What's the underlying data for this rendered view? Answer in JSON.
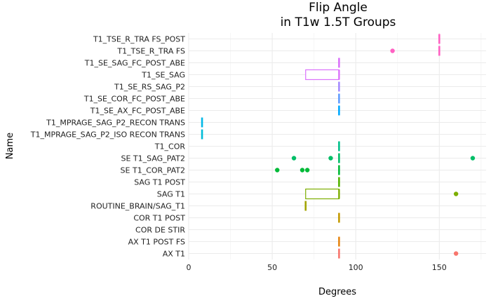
{
  "chart_data": {
    "type": "boxplot",
    "title": [
      "Flip Angle",
      "in T1w 1.5T Groups"
    ],
    "xlabel": "Degrees",
    "ylabel": "Name",
    "xlim": [
      0,
      178
    ],
    "xticks": [
      0,
      50,
      100,
      150
    ],
    "grid": true,
    "legend": "none",
    "groups": [
      {
        "name": "T1_TSE_R_TRA FS_POST",
        "color": "#FF61C3",
        "box": [
          150,
          150,
          150
        ],
        "outliers": []
      },
      {
        "name": "T1_TSE_R_TRA FS",
        "color": "#FF61C3",
        "box": [
          150,
          150,
          150
        ],
        "outliers": [
          122
        ]
      },
      {
        "name": "T1_SE_SAG_FC_POST_ABE",
        "color": "#DB72FB",
        "box": [
          90,
          90,
          90
        ],
        "outliers": []
      },
      {
        "name": "T1_SE_SAG",
        "color": "#DB72FB",
        "box": [
          70,
          90,
          90
        ],
        "outliers": []
      },
      {
        "name": "T1_SE_RS_SAG_P2",
        "color": "#A58AFF",
        "box": [
          90,
          90,
          90
        ],
        "outliers": []
      },
      {
        "name": "T1_SE_COR_FC_POST_ABE",
        "color": "#619CFF",
        "box": [
          90,
          90,
          90
        ],
        "outliers": []
      },
      {
        "name": "T1_SE_AX_FC_POST_ABE",
        "color": "#00A9FF",
        "box": [
          90,
          90,
          90
        ],
        "outliers": []
      },
      {
        "name": "T1_MPRAGE_SAG_P2_RECON TRANS",
        "color": "#00B8E7",
        "box": [
          8,
          8,
          8
        ],
        "outliers": []
      },
      {
        "name": "T1_MPRAGE_SAG_P2_ISO RECON TRANS",
        "color": "#00BCD8",
        "box": [
          8,
          8,
          8
        ],
        "outliers": []
      },
      {
        "name": "T1_COR",
        "color": "#00C08B",
        "box": [
          90,
          90,
          90
        ],
        "outliers": []
      },
      {
        "name": "SE T1_SAG_PAT2",
        "color": "#00BE67",
        "box": [
          90,
          90,
          90
        ],
        "outliers": [
          63,
          85,
          170
        ]
      },
      {
        "name": "SE T1_COR_PAT2",
        "color": "#00BA38",
        "box": [
          90,
          90,
          90
        ],
        "outliers": [
          53,
          68,
          71
        ]
      },
      {
        "name": "SAG T1 POST",
        "color": "#53B400",
        "box": [
          90,
          90,
          90
        ],
        "outliers": []
      },
      {
        "name": "SAG T1",
        "color": "#7CAE00",
        "box": [
          70,
          90,
          90
        ],
        "outliers": [
          160
        ]
      },
      {
        "name": "ROUTINE_BRAIN/SAG_T1",
        "color": "#A3A500",
        "box": [
          70,
          70,
          70
        ],
        "outliers": []
      },
      {
        "name": "COR T1 POST",
        "color": "#C49A00",
        "box": [
          90,
          90,
          90
        ],
        "outliers": []
      },
      {
        "name": "COR DE STIR",
        "color": "#D89000",
        "box": null,
        "outliers": []
      },
      {
        "name": "AX T1 POST FS",
        "color": "#E68613",
        "box": [
          90,
          90,
          90
        ],
        "outliers": []
      },
      {
        "name": "AX T1",
        "color": "#F8766D",
        "box": [
          90,
          90,
          90
        ],
        "outliers": [
          160
        ]
      }
    ]
  }
}
